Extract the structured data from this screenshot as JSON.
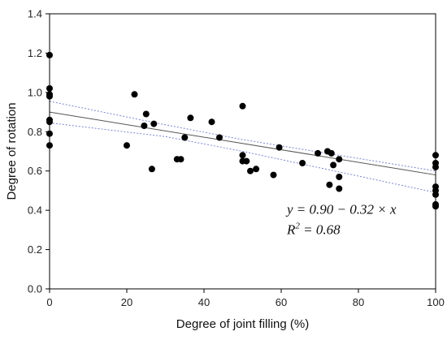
{
  "chart_data": {
    "type": "scatter",
    "title": "",
    "xlabel": "Degree of joint filling (%)",
    "ylabel": "Degree of rotation",
    "xlim": [
      0,
      100
    ],
    "ylim": [
      0.0,
      1.4
    ],
    "x_ticks": [
      0,
      20,
      40,
      60,
      80,
      100
    ],
    "y_ticks": [
      0.0,
      0.2,
      0.4,
      0.6,
      0.8,
      1.0,
      1.2,
      1.4
    ],
    "x_tick_labels": [
      "0",
      "20",
      "40",
      "60",
      "80",
      "100"
    ],
    "y_tick_labels": [
      "0.0",
      "0.2",
      "0.4",
      "0.6",
      "0.8",
      "1.0",
      "1.2",
      "1.4"
    ],
    "grid": false,
    "points": [
      {
        "x": 0,
        "y": 1.19
      },
      {
        "x": 0,
        "y": 1.02
      },
      {
        "x": 0,
        "y": 0.99
      },
      {
        "x": 0,
        "y": 0.98
      },
      {
        "x": 0,
        "y": 0.86
      },
      {
        "x": 0,
        "y": 0.85
      },
      {
        "x": 0,
        "y": 0.79
      },
      {
        "x": 0,
        "y": 0.73
      },
      {
        "x": 20,
        "y": 0.73
      },
      {
        "x": 22,
        "y": 0.99
      },
      {
        "x": 24.5,
        "y": 0.83
      },
      {
        "x": 25,
        "y": 0.89
      },
      {
        "x": 26.5,
        "y": 0.61
      },
      {
        "x": 27,
        "y": 0.84
      },
      {
        "x": 33,
        "y": 0.66
      },
      {
        "x": 34,
        "y": 0.66
      },
      {
        "x": 35,
        "y": 0.77
      },
      {
        "x": 36.5,
        "y": 0.87
      },
      {
        "x": 42,
        "y": 0.85
      },
      {
        "x": 44,
        "y": 0.77
      },
      {
        "x": 50,
        "y": 0.93
      },
      {
        "x": 50,
        "y": 0.68
      },
      {
        "x": 50,
        "y": 0.65
      },
      {
        "x": 51,
        "y": 0.65
      },
      {
        "x": 52,
        "y": 0.6
      },
      {
        "x": 53.5,
        "y": 0.61
      },
      {
        "x": 58,
        "y": 0.58
      },
      {
        "x": 59.5,
        "y": 0.72
      },
      {
        "x": 65.5,
        "y": 0.64
      },
      {
        "x": 69.5,
        "y": 0.69
      },
      {
        "x": 72,
        "y": 0.7
      },
      {
        "x": 73,
        "y": 0.69
      },
      {
        "x": 72.5,
        "y": 0.53
      },
      {
        "x": 73.5,
        "y": 0.63
      },
      {
        "x": 75,
        "y": 0.66
      },
      {
        "x": 75,
        "y": 0.57
      },
      {
        "x": 75,
        "y": 0.51
      },
      {
        "x": 100,
        "y": 0.68
      },
      {
        "x": 100,
        "y": 0.64
      },
      {
        "x": 100,
        "y": 0.62
      },
      {
        "x": 100,
        "y": 0.52
      },
      {
        "x": 100,
        "y": 0.5
      },
      {
        "x": 100,
        "y": 0.48
      },
      {
        "x": 100,
        "y": 0.43
      },
      {
        "x": 100,
        "y": 0.42
      }
    ],
    "fit_line": {
      "intercept": 0.9,
      "slope": -0.0032,
      "color": "#555555"
    },
    "confidence_band": {
      "color": "#7a86d0",
      "upper": [
        {
          "x": 0,
          "y": 0.955
        },
        {
          "x": 30,
          "y": 0.835
        },
        {
          "x": 50,
          "y": 0.76
        },
        {
          "x": 100,
          "y": 0.6
        }
      ],
      "lower": [
        {
          "x": 0,
          "y": 0.845
        },
        {
          "x": 30,
          "y": 0.775
        },
        {
          "x": 50,
          "y": 0.7
        },
        {
          "x": 100,
          "y": 0.49
        }
      ]
    },
    "marker_color": "#000000",
    "annotation": {
      "eq_prefix": "y = 0.90 − 0.32 × x",
      "r2_prefix": "R",
      "r2_sup": "2",
      "r2_suffix": " = 0.68",
      "anchor": {
        "x": 60,
        "y": 0.37
      }
    }
  }
}
